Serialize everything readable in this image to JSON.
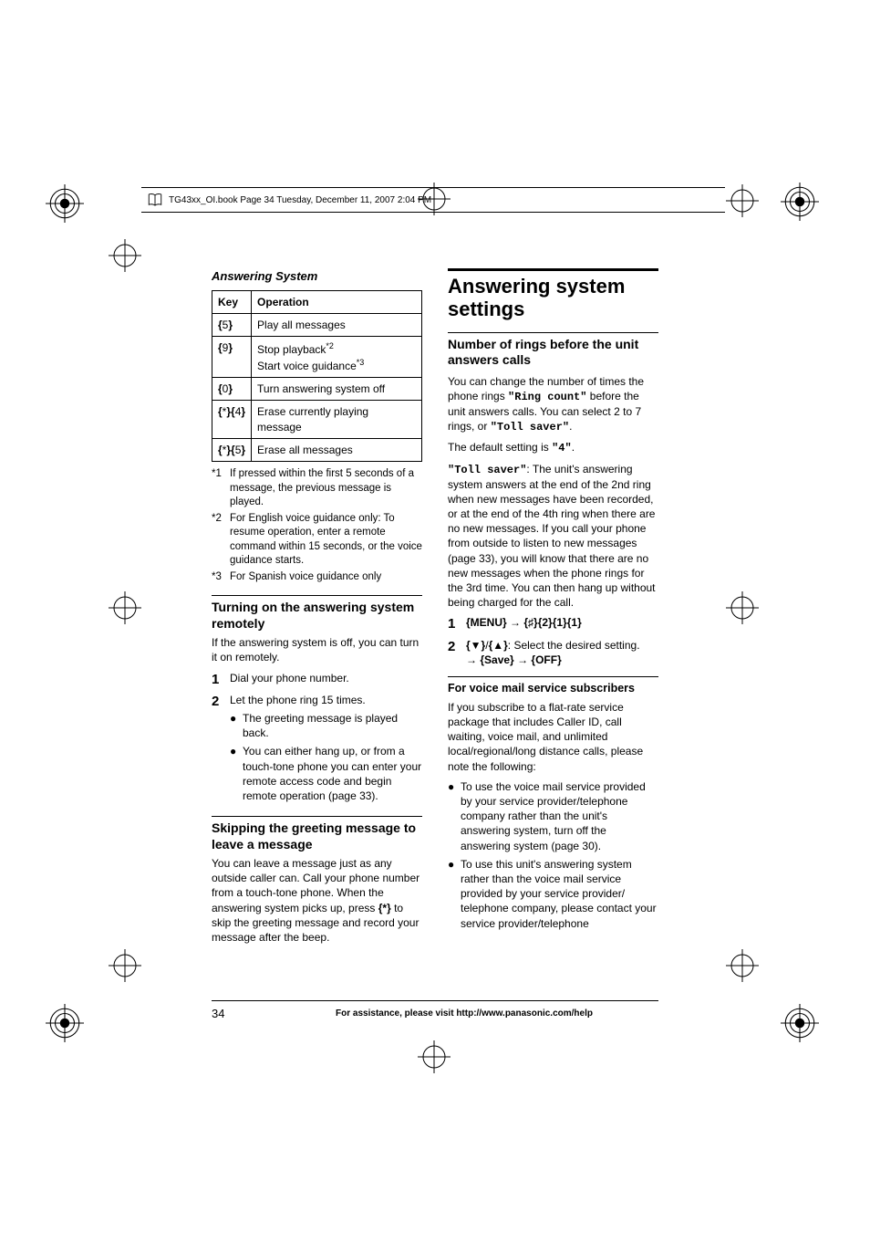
{
  "header": {
    "text": "TG43xx_OI.book  Page 34  Tuesday, December 11, 2007  2:04 PM"
  },
  "section_label": "Answering System",
  "table": {
    "headers": [
      "Key",
      "Operation"
    ],
    "rows": [
      {
        "key": "{5}",
        "op": "Play all messages"
      },
      {
        "key": "{9}",
        "op_html": "Stop playback<span class='sup'>*2</span><br>Start voice guidance<span class='sup'>*3</span>"
      },
      {
        "key": "{0}",
        "op": "Turn answering system off"
      },
      {
        "key": "{*}{4}",
        "op": "Erase currently playing message"
      },
      {
        "key": "{*}{5}",
        "op": "Erase all messages"
      }
    ]
  },
  "footnotes": [
    {
      "label": "*1",
      "text": "If pressed within the first 5 seconds of a message, the previous message is played."
    },
    {
      "label": "*2",
      "text": "For English voice guidance only: To resume operation, enter a remote command within 15 seconds, or the voice guidance starts."
    },
    {
      "label": "*3",
      "text": "For Spanish voice guidance only"
    }
  ],
  "turning_on": {
    "heading": "Turning on the answering system remotely",
    "intro": "If the answering system is off, you can turn it on remotely.",
    "steps": [
      {
        "num": "1",
        "text": "Dial your phone number."
      },
      {
        "num": "2",
        "text": "Let the phone ring 15 times.",
        "bullets": [
          "The greeting message is played back.",
          "You can either hang up, or from a touch-tone phone you can enter your remote access code and begin remote operation (page 33)."
        ]
      }
    ]
  },
  "skipping": {
    "heading": "Skipping the greeting message to leave a message",
    "body": "You can leave a message just as any outside caller can. Call your phone number from a touch-tone phone. When the answering system picks up, press {*} to skip the greeting message and record your message after the beep."
  },
  "settings": {
    "title": "Answering system settings",
    "num_rings": {
      "heading": "Number of rings before the unit answers calls",
      "p1a": "You can change the number of times the phone rings ",
      "ring_count": "\"Ring count\"",
      "p1b": " before the unit answers calls. You can select 2 to 7 rings, or ",
      "toll_saver1": "\"Toll saver\"",
      "p1c": ".",
      "p2a": "The default setting is ",
      "default4": "\"4\"",
      "p2b": ".",
      "toll_saver2": "\"Toll saver\"",
      "p3": ": The unit's answering system answers at the end of the 2nd ring when new messages have been recorded, or at the end of the 4th ring when there are no new messages. If you call your phone from outside to listen to new messages (page 33), you will know that there are no new messages when the phone rings for the 3rd time. You can then hang up without being charged for the call.",
      "steps": [
        {
          "num": "1",
          "html": "<span class='btn-label'>{MENU}</span> <span class='arrow'>→</span> <span class='btn-label'>{♯}{2}{1}{1}</span>"
        },
        {
          "num": "2",
          "html": "<span class='btn-label'>{▼}</span>/<span class='btn-label'>{▲}</span>: Select the desired setting.<br><span class='arrow'>→</span> <span class='btn-label'>{Save}</span> <span class='arrow'>→</span> <span class='btn-label'>{OFF}</span>"
        }
      ]
    },
    "voicemail": {
      "label": "For voice mail service subscribers",
      "intro": "If you subscribe to a flat-rate service package that includes Caller ID, call waiting, voice mail, and unlimited local/regional/long distance calls, please note the following:",
      "bullets": [
        "To use the voice mail service provided by your service provider/telephone company rather than the unit's answering system, turn off the answering system (page 30).",
        "To use this unit's answering system rather than the voice mail service provided by your service provider/ telephone company, please contact your service provider/telephone"
      ]
    }
  },
  "footer": {
    "page": "34",
    "text": "For assistance, please visit http://www.panasonic.com/help"
  }
}
